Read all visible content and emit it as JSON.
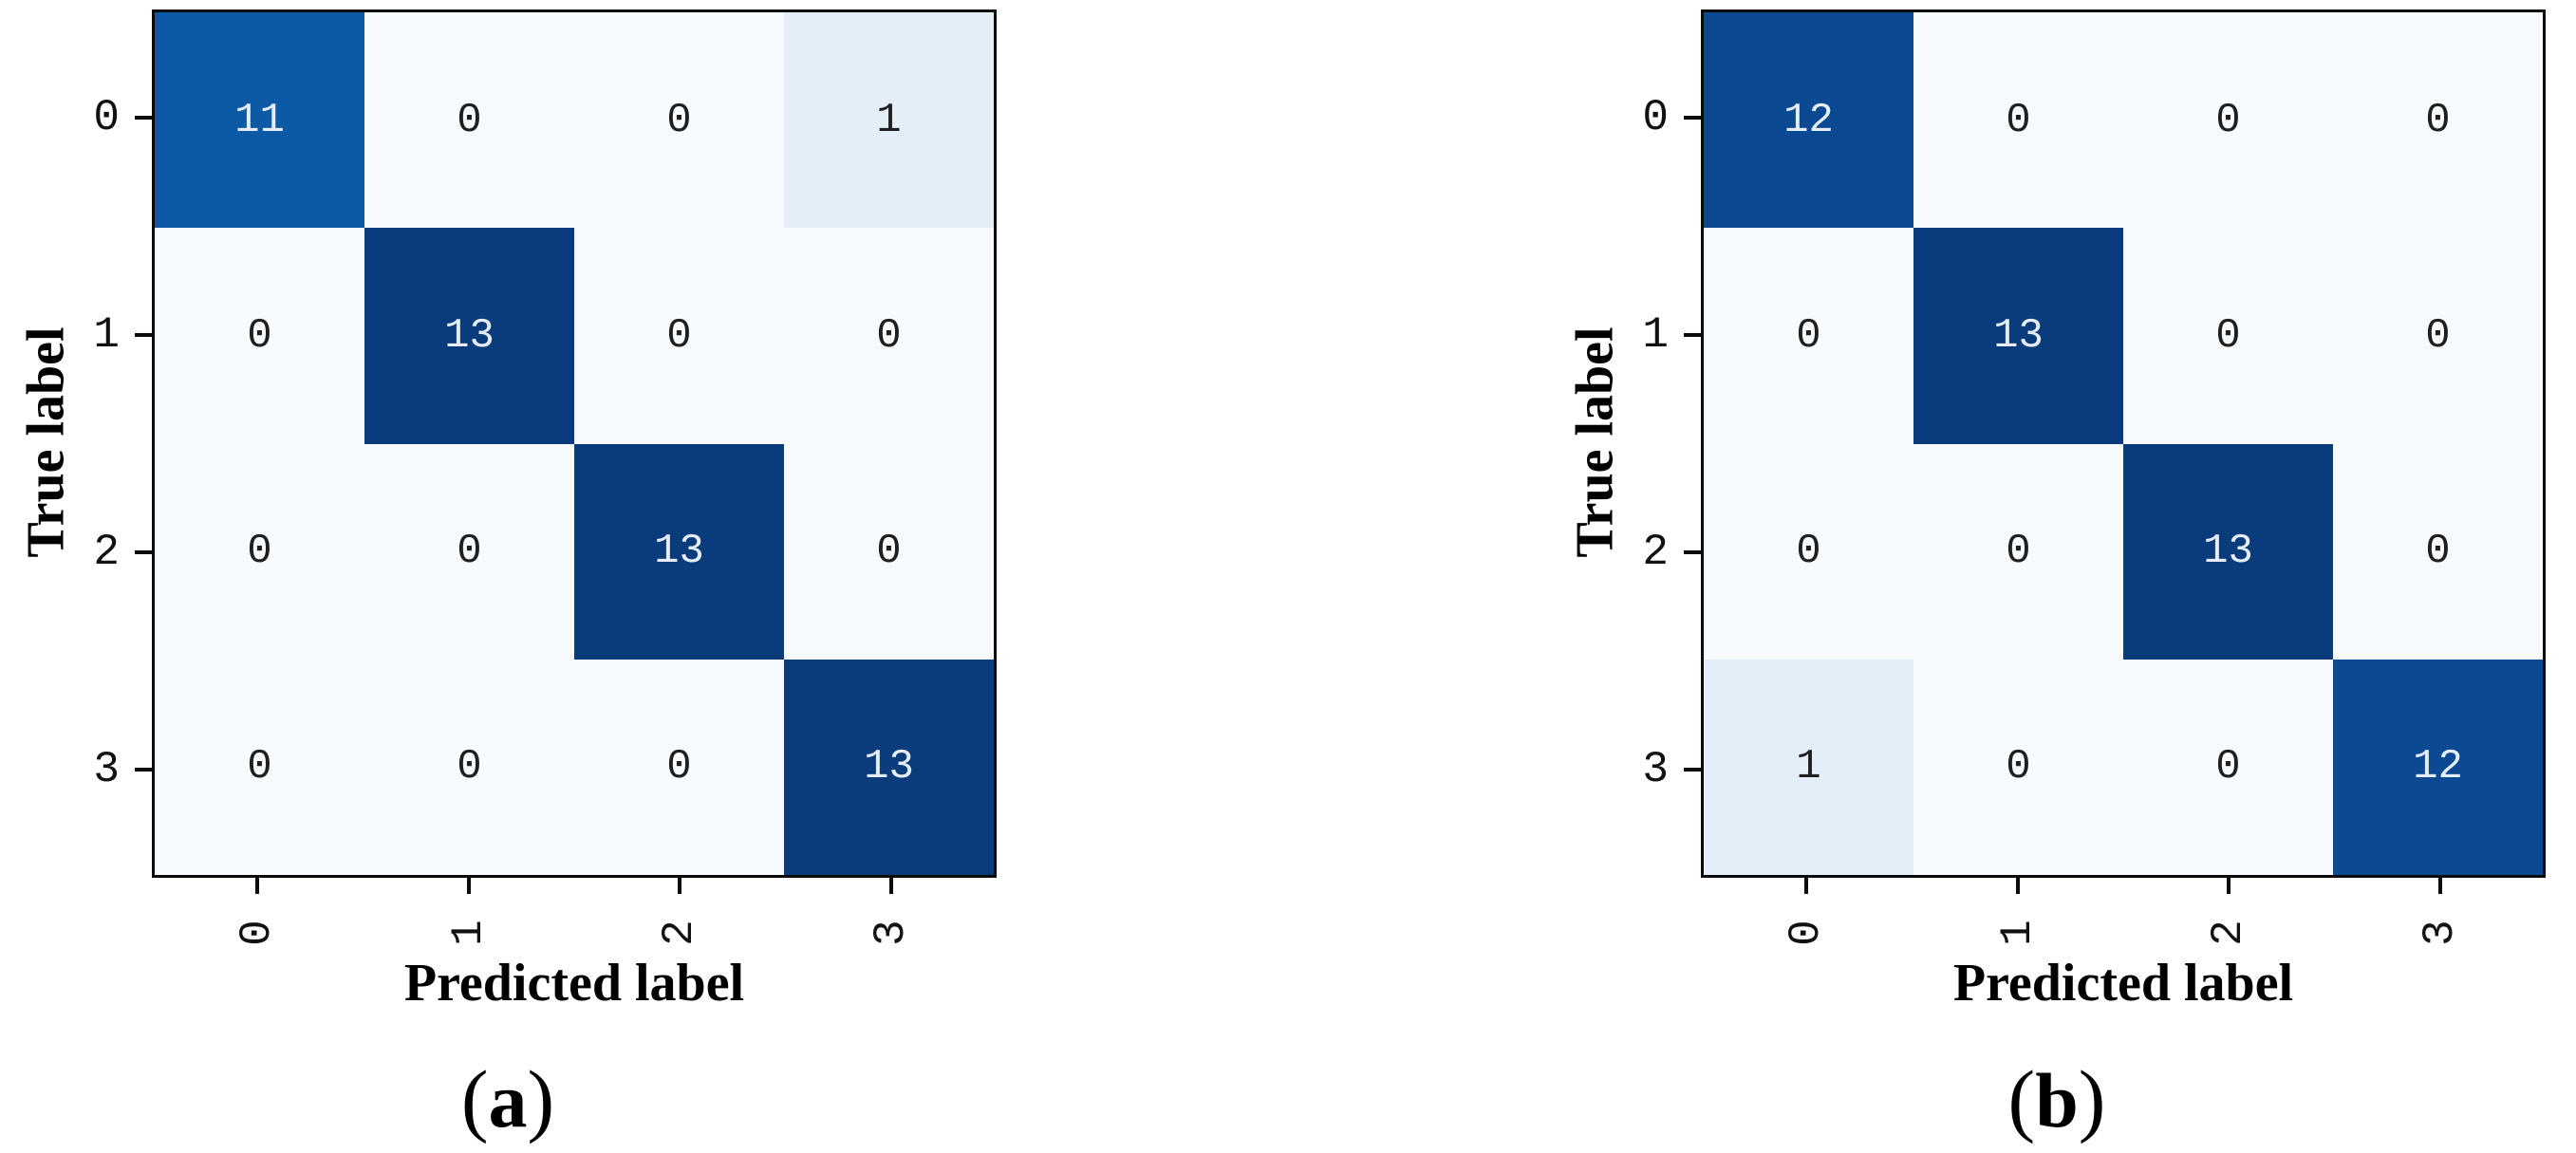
{
  "figure": {
    "background": "#ffffff",
    "axis_color": "#0b0b0b",
    "tick_text_color": "#111111",
    "value_colors": {
      "0": "#f7fbfe",
      "1": "#e3eef9",
      "11": "#0c59a5",
      "12": "#0b4a93",
      "13": "#0a3b7a"
    },
    "cell_text_dark": "#1f1f1f",
    "cell_text_light": "#e4edf8",
    "light_text_min": 7,
    "panels": [
      {
        "caption_open": "(",
        "caption_letter": "a",
        "caption_close": ")"
      },
      {
        "caption_open": "(",
        "caption_letter": "b",
        "caption_close": ")"
      }
    ]
  },
  "chart_data": [
    {
      "type": "heatmap",
      "subplot": "a",
      "title": "",
      "xlabel": "Predicted label",
      "ylabel": "True label",
      "x_categories": [
        "0",
        "1",
        "2",
        "3"
      ],
      "y_categories": [
        "0",
        "1",
        "2",
        "3"
      ],
      "matrix": [
        [
          11,
          0,
          0,
          1
        ],
        [
          0,
          13,
          0,
          0
        ],
        [
          0,
          0,
          13,
          0
        ],
        [
          0,
          0,
          0,
          13
        ]
      ],
      "colormap": "Blues",
      "vmin": 0,
      "vmax": 13,
      "grid": false,
      "legend": "none",
      "x_tick_rotation_deg": 90
    },
    {
      "type": "heatmap",
      "subplot": "b",
      "title": "",
      "xlabel": "Predicted label",
      "ylabel": "True label",
      "x_categories": [
        "0",
        "1",
        "2",
        "3"
      ],
      "y_categories": [
        "0",
        "1",
        "2",
        "3"
      ],
      "matrix": [
        [
          12,
          0,
          0,
          0
        ],
        [
          0,
          13,
          0,
          0
        ],
        [
          0,
          0,
          13,
          0
        ],
        [
          1,
          0,
          0,
          12
        ]
      ],
      "colormap": "Blues",
      "vmin": 0,
      "vmax": 13,
      "grid": false,
      "legend": "none",
      "x_tick_rotation_deg": 90
    }
  ]
}
